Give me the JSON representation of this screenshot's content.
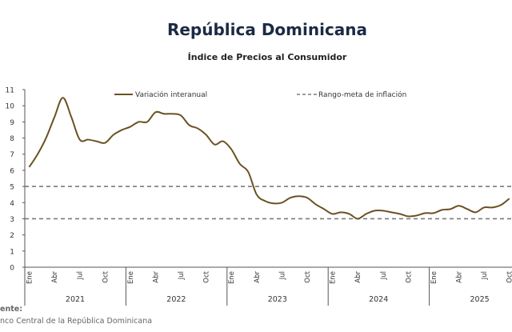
{
  "title": "República Dominicana",
  "subtitle": "Índice de Precios al Consumidor",
  "source": {
    "label": "ente:",
    "text": "nco Central de la República Dominicana"
  },
  "chart_data": {
    "type": "line",
    "title": "República Dominicana",
    "subtitle": "Índice de Precios al Consumidor",
    "ylim": [
      0,
      11
    ],
    "yticks": [
      0,
      1,
      2,
      3,
      4,
      5,
      6,
      7,
      8,
      9,
      10,
      11
    ],
    "grid": false,
    "legend_position": "top",
    "month_labels": [
      "Ene",
      "Abr",
      "Jul",
      "Oct"
    ],
    "years": [
      "2021",
      "2022",
      "2023",
      "2024",
      "2025"
    ],
    "x_start": "2021-01",
    "x_end": "2025-10",
    "series": [
      {
        "name": "Variación interanual",
        "style": "solid",
        "color": "#6b5223",
        "values": [
          6.2,
          7.0,
          8.0,
          9.3,
          10.5,
          9.3,
          7.9,
          7.9,
          7.8,
          7.7,
          8.2,
          8.5,
          8.7,
          9.0,
          9.0,
          9.6,
          9.5,
          9.5,
          9.4,
          8.8,
          8.6,
          8.2,
          7.6,
          7.8,
          7.3,
          6.4,
          5.9,
          4.5,
          4.1,
          3.95,
          4.0,
          4.3,
          4.4,
          4.3,
          3.9,
          3.6,
          3.3,
          3.4,
          3.3,
          3.0,
          3.3,
          3.5,
          3.5,
          3.4,
          3.3,
          3.15,
          3.2,
          3.35,
          3.35,
          3.55,
          3.6,
          3.8,
          3.6,
          3.4,
          3.7,
          3.7,
          3.85,
          4.25
        ]
      },
      {
        "name": "Rango-meta de inflación",
        "style": "dashed",
        "color": "#7a7a7a",
        "bands": [
          3,
          5
        ]
      }
    ]
  }
}
